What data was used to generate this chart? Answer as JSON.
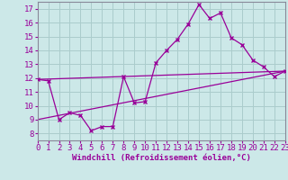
{
  "bg_color": "#cce8e8",
  "grid_color": "#aacccc",
  "line_color": "#990099",
  "xlabel": "Windchill (Refroidissement éolien,°C)",
  "xlim": [
    0,
    23
  ],
  "ylim": [
    7.5,
    17.5
  ],
  "yticks": [
    8,
    9,
    10,
    11,
    12,
    13,
    14,
    15,
    16,
    17
  ],
  "xticks": [
    0,
    1,
    2,
    3,
    4,
    5,
    6,
    7,
    8,
    9,
    10,
    11,
    12,
    13,
    14,
    15,
    16,
    17,
    18,
    19,
    20,
    21,
    22,
    23
  ],
  "line1_x": [
    0,
    1,
    2,
    3,
    4,
    5,
    6,
    7,
    8,
    9,
    10,
    11,
    12,
    13,
    14,
    15,
    16,
    17,
    18,
    19,
    20,
    21,
    22,
    23
  ],
  "line1_y": [
    11.9,
    11.8,
    9.0,
    9.5,
    9.3,
    8.2,
    8.5,
    8.5,
    12.1,
    10.2,
    10.3,
    13.1,
    14.0,
    14.8,
    15.9,
    17.3,
    16.3,
    16.7,
    14.9,
    14.4,
    13.3,
    12.8,
    12.1,
    12.5
  ],
  "line2_x": [
    0,
    23
  ],
  "line2_y": [
    9.0,
    12.5
  ],
  "line3_x": [
    0,
    23
  ],
  "line3_y": [
    11.9,
    12.5
  ],
  "tick_fontsize": 6.5,
  "xlabel_fontsize": 6.5
}
